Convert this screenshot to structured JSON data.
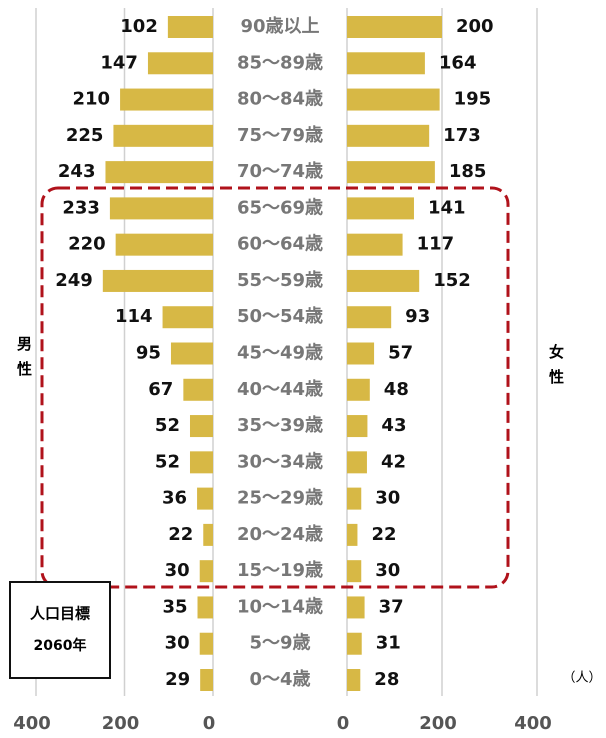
{
  "chart_data": {
    "type": "pyramid",
    "categories": [
      "90歳以上",
      "85〜89歳",
      "80〜84歳",
      "75〜79歳",
      "70〜74歳",
      "65〜69歳",
      "60〜64歳",
      "55〜59歳",
      "50〜54歳",
      "45〜49歳",
      "40〜44歳",
      "35〜39歳",
      "30〜34歳",
      "25〜29歳",
      "20〜24歳",
      "15〜19歳",
      "10〜14歳",
      "5〜9歳",
      "0〜4歳"
    ],
    "series": [
      {
        "name": "男性",
        "color": "#d7b845",
        "values": [
          102,
          147,
          210,
          225,
          243,
          233,
          220,
          249,
          114,
          95,
          67,
          52,
          52,
          36,
          22,
          30,
          35,
          30,
          29
        ]
      },
      {
        "name": "女性",
        "color": "#d7b845",
        "values": [
          200,
          164,
          195,
          173,
          185,
          141,
          117,
          152,
          93,
          57,
          48,
          43,
          42,
          30,
          22,
          30,
          37,
          31,
          28
        ]
      }
    ],
    "xlim": [
      0,
      400
    ],
    "xticks": [
      0,
      200,
      400
    ],
    "unit": "（人）",
    "annotations": [
      "人口目標",
      "2060年"
    ]
  }
}
